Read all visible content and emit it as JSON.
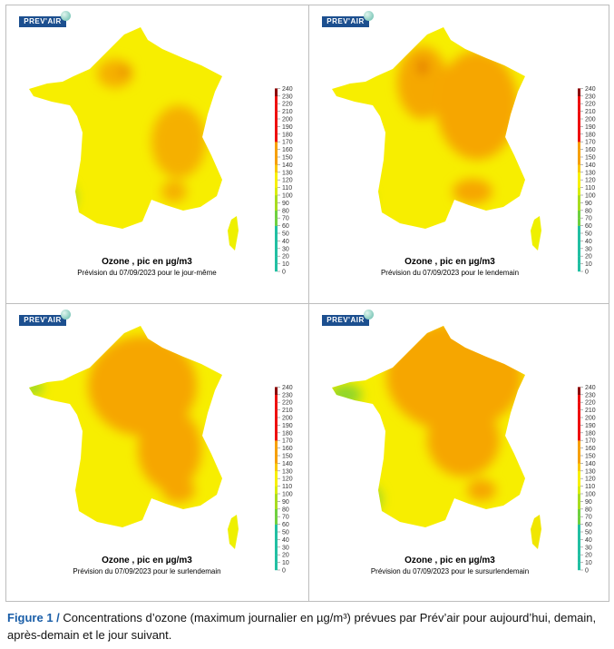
{
  "panels": [
    {
      "logo": "PREV'AIR",
      "title": "Ozone , pic en µg/m3",
      "subtitle": "Prévision du 07/09/2023 pour le jour-même"
    },
    {
      "logo": "PREV'AIR",
      "title": "Ozone , pic en µg/m3",
      "subtitle": "Prévision du 07/09/2023 pour le lendemain"
    },
    {
      "logo": "PREV'AIR",
      "title": "Ozone , pic en µg/m3",
      "subtitle": "Prévision du 07/09/2023 pour le surlendemain"
    },
    {
      "logo": "PREV'AIR",
      "title": "Ozone , pic en µg/m3",
      "subtitle": "Prévision du 07/09/2023 pour le sursurlendemain"
    }
  ],
  "chart_data": {
    "type": "heatmap",
    "title": "Ozone , pic en µg/m3",
    "colorbar": {
      "ticks": [
        0,
        10,
        20,
        30,
        40,
        50,
        60,
        70,
        80,
        90,
        100,
        110,
        120,
        130,
        140,
        150,
        160,
        170,
        180,
        190,
        200,
        210,
        220,
        230,
        240
      ],
      "range": [
        0,
        240
      ],
      "colors": {
        "0-60": "#22bfa3",
        "70-100": "#8fd62a",
        "110-130": "#f7f000",
        "140-170": "#f6a000",
        "180-230": "#ee1010",
        "240": "#8b0000"
      }
    }
  },
  "caption": {
    "label": "Figure 1 /",
    "text": " Concentrations d’ozone (maximum journalier en µg/m³) prévues par Prév’air pour aujourd’hui, demain, après-demain et le jour suivant."
  }
}
